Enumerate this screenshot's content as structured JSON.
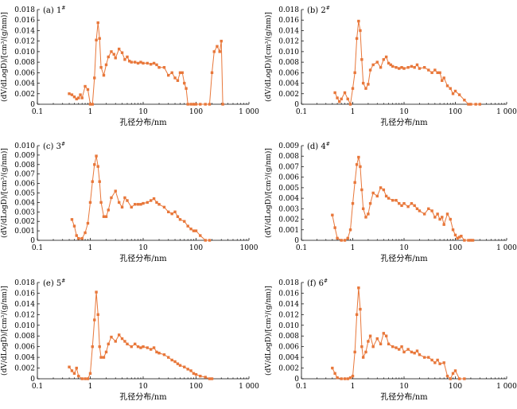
{
  "chart_data": [
    {
      "type": "line",
      "panel_label": "(a) 1#",
      "xlabel": "孔径分布/nm",
      "ylabel": "(dV/dLogD)/[cm³/(g/nm)]",
      "xscale": "log",
      "xlim": [
        0.1,
        1000
      ],
      "ylim": [
        0,
        0.018
      ],
      "xticks": [
        0.1,
        1,
        10,
        100,
        1000
      ],
      "xtick_labels": [
        "0.1",
        "1",
        "10",
        "100",
        "1 000"
      ],
      "yticks": [
        0,
        0.002,
        0.004,
        0.006,
        0.008,
        0.01,
        0.012,
        0.014,
        0.016,
        0.018
      ],
      "ytick_labels": [
        "0",
        "0.002",
        "0.004",
        "0.006",
        "0.008",
        "0.010",
        "0.012",
        "0.014",
        "0.016",
        "0.018"
      ],
      "color": "#e8773a",
      "grid": false,
      "x": [
        0.4,
        0.45,
        0.5,
        0.55,
        0.6,
        0.65,
        0.7,
        0.8,
        0.9,
        1.0,
        1.1,
        1.2,
        1.3,
        1.4,
        1.5,
        1.6,
        1.8,
        2.0,
        2.2,
        2.5,
        2.8,
        3.0,
        3.5,
        4.0,
        4.5,
        5.0,
        5.5,
        6.0,
        7.0,
        8.0,
        9.0,
        10,
        12,
        14,
        16,
        18,
        20,
        25,
        30,
        35,
        40,
        45,
        50,
        55,
        60,
        65,
        70,
        80,
        90,
        100,
        120,
        150,
        180,
        200,
        220,
        250,
        280,
        300,
        320
      ],
      "y": [
        0.002,
        0.0018,
        0.0014,
        0.001,
        0.0012,
        0.0018,
        0.0012,
        0.0034,
        0.0028,
        0.0,
        0.0,
        0.005,
        0.0122,
        0.0155,
        0.0125,
        0.007,
        0.0055,
        0.0075,
        0.009,
        0.01,
        0.0095,
        0.0088,
        0.0105,
        0.0098,
        0.0085,
        0.009,
        0.0082,
        0.008,
        0.008,
        0.0078,
        0.008,
        0.0078,
        0.0078,
        0.0076,
        0.0078,
        0.0075,
        0.007,
        0.007,
        0.0055,
        0.006,
        0.005,
        0.0045,
        0.006,
        0.006,
        0.004,
        0.003,
        0.0,
        0.0,
        0.0,
        0.0,
        0.0,
        0.0,
        0.0,
        0.006,
        0.01,
        0.011,
        0.01,
        0.012,
        0.0
      ]
    },
    {
      "type": "line",
      "panel_label": "(b) 2#",
      "xlabel": "孔径分布/nm",
      "ylabel": "(dV/dLogD)/[cm³/(g/nm)]",
      "xscale": "log",
      "xlim": [
        0.1,
        1000
      ],
      "ylim": [
        0,
        0.018
      ],
      "xticks": [
        0.1,
        1,
        10,
        100,
        1000
      ],
      "xtick_labels": [
        "0.1",
        "1",
        "10",
        "100",
        "1 000"
      ],
      "yticks": [
        0,
        0.002,
        0.004,
        0.006,
        0.008,
        0.01,
        0.012,
        0.014,
        0.016,
        0.018
      ],
      "ytick_labels": [
        "0",
        "0.002",
        "0.004",
        "0.006",
        "0.008",
        "0.010",
        "0.012",
        "0.014",
        "0.016",
        "0.018"
      ],
      "color": "#e8773a",
      "grid": false,
      "x": [
        0.45,
        0.5,
        0.55,
        0.6,
        0.7,
        0.8,
        0.9,
        1.0,
        1.1,
        1.2,
        1.3,
        1.4,
        1.5,
        1.6,
        1.8,
        2.0,
        2.2,
        2.5,
        3.0,
        3.5,
        4.0,
        4.5,
        5.0,
        5.5,
        6.0,
        7.0,
        8.0,
        9.0,
        10,
        12,
        14,
        16,
        18,
        20,
        25,
        30,
        35,
        40,
        45,
        50,
        55,
        60,
        70,
        80,
        90,
        100,
        120,
        150,
        180,
        200,
        250,
        300
      ],
      "y": [
        0.0022,
        0.0012,
        0.0005,
        0.001,
        0.0022,
        0.001,
        0.0,
        0.003,
        0.006,
        0.0125,
        0.0158,
        0.014,
        0.0085,
        0.004,
        0.003,
        0.0038,
        0.0065,
        0.0075,
        0.008,
        0.007,
        0.0085,
        0.009,
        0.0078,
        0.0075,
        0.0072,
        0.007,
        0.0068,
        0.007,
        0.0068,
        0.007,
        0.0072,
        0.007,
        0.0075,
        0.0068,
        0.007,
        0.0065,
        0.006,
        0.0065,
        0.006,
        0.006,
        0.0045,
        0.005,
        0.0035,
        0.003,
        0.002,
        0.0025,
        0.0018,
        0.0008,
        0.0,
        0.0,
        0.0,
        0.0
      ]
    },
    {
      "type": "line",
      "panel_label": "(c) 3#",
      "xlabel": "孔径分布/nm",
      "ylabel": "(dV/dLogD)/[cm³/(g/nm)]",
      "xscale": "log",
      "xlim": [
        0.1,
        1000
      ],
      "ylim": [
        0,
        0.01
      ],
      "xticks": [
        0.1,
        1,
        10,
        100,
        1000
      ],
      "xtick_labels": [
        "0.1",
        "1",
        "10",
        "100",
        "1000"
      ],
      "yticks": [
        0,
        0.001,
        0.002,
        0.003,
        0.004,
        0.005,
        0.006,
        0.007,
        0.008,
        0.009,
        0.01
      ],
      "ytick_labels": [
        "0",
        "0.001",
        "0.002",
        "0.003",
        "0.004",
        "0.005",
        "0.006",
        "0.007",
        "0.008",
        "0.009",
        "0.010"
      ],
      "color": "#e8773a",
      "grid": false,
      "x": [
        0.45,
        0.5,
        0.55,
        0.6,
        0.7,
        0.8,
        0.9,
        1.0,
        1.1,
        1.2,
        1.3,
        1.4,
        1.5,
        1.6,
        1.8,
        2.0,
        2.2,
        2.5,
        3.0,
        3.5,
        4.0,
        4.5,
        5.0,
        6.0,
        7.0,
        8.0,
        9.0,
        10,
        12,
        14,
        16,
        18,
        20,
        25,
        30,
        35,
        40,
        45,
        50,
        60,
        70,
        80,
        90,
        100,
        120,
        150,
        180
      ],
      "y": [
        0.0022,
        0.0015,
        0.0005,
        0.0002,
        0.0002,
        0.0008,
        0.0018,
        0.004,
        0.0062,
        0.008,
        0.0089,
        0.0078,
        0.0062,
        0.004,
        0.0025,
        0.0025,
        0.0032,
        0.0045,
        0.0052,
        0.004,
        0.0035,
        0.0045,
        0.0042,
        0.0035,
        0.0038,
        0.0038,
        0.0038,
        0.0039,
        0.004,
        0.0042,
        0.0044,
        0.004,
        0.0038,
        0.0035,
        0.003,
        0.0028,
        0.003,
        0.0025,
        0.0022,
        0.002,
        0.0015,
        0.0012,
        0.001,
        0.001,
        0.0005,
        0.0,
        0.0
      ]
    },
    {
      "type": "line",
      "panel_label": "(d) 4#",
      "xlabel": "孔径分布/nm",
      "ylabel": "(dV/dLogD)/[cm³/(g/nm)]",
      "xscale": "log",
      "xlim": [
        0.1,
        1000
      ],
      "ylim": [
        0,
        0.009
      ],
      "xticks": [
        0.1,
        1,
        10,
        100,
        1000
      ],
      "xtick_labels": [
        "0.1",
        "1",
        "10",
        "100",
        "1 000"
      ],
      "yticks": [
        0,
        0.001,
        0.002,
        0.003,
        0.004,
        0.005,
        0.006,
        0.007,
        0.008,
        0.009
      ],
      "ytick_labels": [
        "0",
        "0.001",
        "0.002",
        "0.003",
        "0.004",
        "0.005",
        "0.006",
        "0.007",
        "0.008",
        "0.009"
      ],
      "color": "#e8773a",
      "grid": false,
      "x": [
        0.4,
        0.45,
        0.5,
        0.6,
        0.7,
        0.8,
        0.9,
        1.0,
        1.1,
        1.2,
        1.3,
        1.4,
        1.5,
        1.6,
        1.8,
        2.0,
        2.2,
        2.5,
        3.0,
        3.5,
        4.0,
        4.5,
        5.0,
        6.0,
        7.0,
        8.0,
        9.0,
        10,
        12,
        14,
        16,
        18,
        20,
        25,
        30,
        35,
        40,
        45,
        50,
        55,
        60,
        70,
        80,
        90,
        100,
        110,
        120,
        130,
        150,
        180,
        200,
        220
      ],
      "y": [
        0.0024,
        0.0012,
        0.0002,
        0.0,
        0.0,
        0.0002,
        0.001,
        0.0035,
        0.0055,
        0.0072,
        0.0079,
        0.007,
        0.0048,
        0.003,
        0.0022,
        0.0025,
        0.0035,
        0.0045,
        0.0042,
        0.005,
        0.0048,
        0.0042,
        0.004,
        0.0038,
        0.0038,
        0.0035,
        0.0033,
        0.0035,
        0.0032,
        0.0035,
        0.0033,
        0.003,
        0.0028,
        0.0025,
        0.003,
        0.0028,
        0.0022,
        0.0025,
        0.002,
        0.0022,
        0.0015,
        0.0025,
        0.002,
        0.001,
        0.0005,
        0.0002,
        0.0003,
        0.0004,
        0.0,
        0.0,
        0.0,
        0.0
      ]
    },
    {
      "type": "line",
      "panel_label": "(e) 5#",
      "xlabel": "孔径分布/nm",
      "ylabel": "(dV/dLogD)/[cm³/(g/nm)]",
      "xscale": "log",
      "xlim": [
        0.1,
        1000
      ],
      "ylim": [
        0,
        0.018
      ],
      "xticks": [
        0.1,
        1,
        10,
        100,
        1000
      ],
      "xtick_labels": [
        "0.1",
        "1",
        "10",
        "100",
        "1 000"
      ],
      "yticks": [
        0,
        0.002,
        0.004,
        0.006,
        0.008,
        0.01,
        0.012,
        0.014,
        0.016,
        0.018
      ],
      "ytick_labels": [
        "0",
        "0.002",
        "0.004",
        "0.006",
        "0.008",
        "0.010",
        "0.012",
        "0.014",
        "0.016",
        "0.018"
      ],
      "color": "#e8773a",
      "grid": false,
      "x": [
        0.4,
        0.45,
        0.5,
        0.55,
        0.6,
        0.7,
        0.8,
        0.9,
        1.0,
        1.1,
        1.2,
        1.3,
        1.4,
        1.5,
        1.6,
        1.8,
        2.0,
        2.2,
        2.5,
        3.0,
        3.5,
        4.0,
        4.5,
        5.0,
        6.0,
        7.0,
        8.0,
        9.0,
        10,
        12,
        14,
        16,
        18,
        20,
        25,
        30,
        35,
        40,
        45,
        50,
        60,
        70,
        80,
        90,
        100,
        120,
        150,
        180,
        200
      ],
      "y": [
        0.0022,
        0.0015,
        0.001,
        0.002,
        0.0005,
        0.0,
        0.0,
        0.0,
        0.001,
        0.006,
        0.011,
        0.0162,
        0.012,
        0.006,
        0.004,
        0.004,
        0.005,
        0.0065,
        0.0078,
        0.007,
        0.0082,
        0.0075,
        0.007,
        0.0065,
        0.006,
        0.0065,
        0.006,
        0.0058,
        0.006,
        0.0058,
        0.0055,
        0.0058,
        0.005,
        0.0048,
        0.0045,
        0.004,
        0.0035,
        0.0032,
        0.0028,
        0.0025,
        0.0022,
        0.0018,
        0.0015,
        0.001,
        0.0008,
        0.0005,
        0.0003,
        0.0,
        0.0
      ]
    },
    {
      "type": "line",
      "panel_label": "(f) 6#",
      "xlabel": "孔径分布/nm",
      "ylabel": "(dV/dLogD)/[cm³/(g/nm)]",
      "xscale": "log",
      "xlim": [
        0.1,
        1000
      ],
      "ylim": [
        0,
        0.018
      ],
      "xticks": [
        0.1,
        1,
        10,
        100,
        1000
      ],
      "xtick_labels": [
        "0.1",
        "1",
        "10",
        "100",
        "1 000"
      ],
      "yticks": [
        0,
        0.002,
        0.004,
        0.006,
        0.008,
        0.01,
        0.012,
        0.014,
        0.016,
        0.018
      ],
      "ytick_labels": [
        "0",
        "0.002",
        "0.004",
        "0.006",
        "0.008",
        "0.010",
        "0.012",
        "0.014",
        "0.016",
        "0.018"
      ],
      "color": "#e8773a",
      "grid": false,
      "x": [
        0.4,
        0.45,
        0.5,
        0.6,
        0.7,
        0.8,
        0.9,
        1.0,
        1.1,
        1.2,
        1.3,
        1.4,
        1.5,
        1.6,
        1.8,
        2.0,
        2.2,
        2.5,
        3.0,
        3.5,
        4.0,
        4.5,
        5.0,
        6.0,
        7.0,
        8.0,
        9.0,
        10,
        12,
        14,
        16,
        18,
        20,
        25,
        30,
        35,
        40,
        45,
        50,
        60,
        70,
        80,
        90,
        100,
        120,
        150
      ],
      "y": [
        0.002,
        0.001,
        0.0002,
        0.0,
        0.0,
        0.0,
        0.0002,
        0.0005,
        0.005,
        0.012,
        0.017,
        0.013,
        0.006,
        0.004,
        0.005,
        0.007,
        0.008,
        0.006,
        0.0075,
        0.0065,
        0.0085,
        0.008,
        0.0065,
        0.006,
        0.0058,
        0.0055,
        0.006,
        0.005,
        0.0055,
        0.005,
        0.0048,
        0.0052,
        0.0045,
        0.004,
        0.004,
        0.0035,
        0.003,
        0.0035,
        0.0028,
        0.003,
        0.0005,
        0.0,
        0.001,
        0.0015,
        0.0,
        0.0
      ]
    }
  ]
}
